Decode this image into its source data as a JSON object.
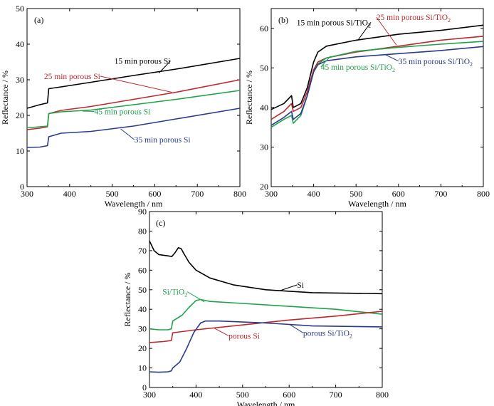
{
  "chart_data": [
    {
      "panel": "(a)",
      "type": "line",
      "xlabel": "Wavelength / nm",
      "ylabel": "Reflectance / %",
      "xlim": [
        300,
        800
      ],
      "ylim": [
        0,
        50
      ],
      "xticks": [
        "300",
        "400",
        "500",
        "600",
        "700",
        "800"
      ],
      "yticks": [
        "0",
        "10",
        "20",
        "30",
        "40",
        "50"
      ],
      "series": [
        {
          "name": "15 min porous Si",
          "sub": "",
          "color": "#000000",
          "x": [
            300,
            330,
            348,
            351,
            380,
            450,
            550,
            650,
            800
          ],
          "y": [
            22,
            23,
            23.5,
            27.5,
            28,
            29.3,
            31.2,
            33,
            36
          ]
        },
        {
          "name": "25 min porous Si",
          "sub": "",
          "color": "#c0282d",
          "x": [
            300,
            330,
            348,
            351,
            380,
            450,
            550,
            650,
            800
          ],
          "y": [
            16,
            16.4,
            16.8,
            20.5,
            21.4,
            22.5,
            24.5,
            26.5,
            30
          ]
        },
        {
          "name": "45 min porous Si",
          "sub": "",
          "color": "#1fa34a",
          "x": [
            300,
            330,
            348,
            351,
            380,
            450,
            550,
            650,
            800
          ],
          "y": [
            16.5,
            16.8,
            17,
            20.5,
            21,
            21.5,
            23,
            24.5,
            27
          ]
        },
        {
          "name": "35 min porous Si",
          "sub": "",
          "color": "#2a3a8c",
          "x": [
            300,
            330,
            348,
            351,
            380,
            450,
            550,
            650,
            800
          ],
          "y": [
            11,
            11.1,
            11.5,
            14,
            15,
            15.5,
            17,
            19,
            22
          ]
        }
      ],
      "labels": [
        {
          "name": "15 min porous Si",
          "sub": "",
          "x": 505,
          "y": 34.5,
          "ax": 610,
          "ay": 31.9
        },
        {
          "name": "25 min porous Si",
          "sub": "",
          "x": 340,
          "y": 30.2,
          "ax": 640,
          "ay": 26.5
        },
        {
          "name": "45 min porous Si",
          "sub": "",
          "x": 458,
          "y": 20.3,
          "ax": 430,
          "ay": 21.2
        },
        {
          "name": "35 min porous Si",
          "sub": "",
          "x": 552,
          "y": 12.4,
          "ax": 520,
          "ay": 16.2
        }
      ]
    },
    {
      "panel": "(b)",
      "type": "line",
      "xlabel": "Wavelength / nm",
      "ylabel": "Reflectance / %",
      "xlim": [
        300,
        800
      ],
      "ylim": [
        20,
        65
      ],
      "xticks": [
        "300",
        "400",
        "500",
        "600",
        "700",
        "800"
      ],
      "yticks": [
        "20",
        "30",
        "40",
        "50",
        "60"
      ],
      "series": [
        {
          "name": "15 min porous Si/TiO",
          "sub": "2",
          "color": "#000000",
          "x": [
            300,
            330,
            348,
            352,
            370,
            385,
            400,
            410,
            430,
            500,
            600,
            700,
            800
          ],
          "y": [
            39.5,
            41,
            43,
            40,
            41,
            45,
            51.5,
            54,
            55.5,
            57,
            58.5,
            59.5,
            60.8
          ]
        },
        {
          "name": "25 min porous Si/TiO",
          "sub": "2",
          "color": "#c0282d",
          "x": [
            300,
            330,
            348,
            352,
            370,
            385,
            400,
            410,
            430,
            500,
            600,
            700,
            800
          ],
          "y": [
            37,
            39,
            41,
            39,
            40,
            44,
            49.5,
            51.5,
            52.5,
            54,
            55.5,
            57,
            58
          ]
        },
        {
          "name": "45 min porous Si/TiO",
          "sub": "2",
          "color": "#1fa34a",
          "x": [
            300,
            330,
            348,
            352,
            370,
            385,
            400,
            410,
            430,
            500,
            600,
            700,
            800
          ],
          "y": [
            35,
            37,
            38,
            36,
            38,
            43,
            49,
            51,
            52.5,
            54.2,
            55.2,
            56,
            56.7
          ]
        },
        {
          "name": "35 min porous Si/TiO",
          "sub": "2",
          "color": "#2a3a8c",
          "x": [
            300,
            330,
            348,
            352,
            370,
            385,
            400,
            410,
            430,
            500,
            600,
            700,
            800
          ],
          "y": [
            35.5,
            37.5,
            39,
            37,
            38.5,
            43,
            49,
            50.8,
            51.8,
            52.8,
            53.6,
            54.4,
            55.4
          ]
        }
      ],
      "labels": [
        {
          "name": "15 min porous Si/TiO",
          "sub": "2",
          "x": 360,
          "y": 60.8,
          "ax": 505,
          "ay": 57.1
        },
        {
          "name": "25 min porous Si/TiO",
          "sub": "2",
          "x": 548,
          "y": 62.1,
          "ax": 595,
          "ay": 55.8
        },
        {
          "name": "45 min porous Si/TiO",
          "sub": "2",
          "x": 417,
          "y": 49.5,
          "ax": 440,
          "ay": 53.0
        },
        {
          "name": "35 min porous Si/TiO",
          "sub": "2",
          "x": 600,
          "y": 51.0,
          "ax": 570,
          "ay": 53.3
        }
      ]
    },
    {
      "panel": "(c)",
      "type": "line",
      "xlabel": "Wavelength / nm",
      "ylabel": "Reflectance / %",
      "xlim": [
        300,
        800
      ],
      "ylim": [
        0,
        90
      ],
      "xticks": [
        "300",
        "400",
        "500",
        "600",
        "700",
        "800"
      ],
      "yticks": [
        "0",
        "10",
        "20",
        "30",
        "40",
        "50",
        "60",
        "70",
        "80",
        "90"
      ],
      "series": [
        {
          "name": "Si",
          "sub": "",
          "color": "#000000",
          "x": [
            300,
            310,
            320,
            335,
            348,
            355,
            362,
            368,
            375,
            385,
            400,
            430,
            480,
            550,
            650,
            800
          ],
          "y": [
            75,
            70,
            68,
            67.5,
            67,
            69,
            71.5,
            71,
            68,
            64,
            60,
            56,
            52.5,
            50,
            48.5,
            48
          ]
        },
        {
          "name": "Si/TiO",
          "sub": "2",
          "color": "#1fa34a",
          "x": [
            300,
            320,
            340,
            347,
            350,
            370,
            385,
            400,
            410,
            430,
            500,
            600,
            700,
            800
          ],
          "y": [
            30,
            29.5,
            29.5,
            30,
            34,
            37,
            41,
            44.5,
            45,
            44,
            43,
            41.5,
            40,
            37.5
          ]
        },
        {
          "name": "porous Si",
          "sub": "",
          "color": "#c0282d",
          "x": [
            300,
            330,
            347,
            350,
            400,
            500,
            600,
            700,
            800
          ],
          "y": [
            23,
            23.5,
            24,
            28,
            29.5,
            32,
            34.5,
            36.5,
            39
          ]
        },
        {
          "name": "porous Si/TiO",
          "sub": "2",
          "color": "#2a3a8c",
          "x": [
            300,
            320,
            340,
            347,
            350,
            365,
            380,
            395,
            410,
            420,
            450,
            550,
            650,
            800
          ],
          "y": [
            8,
            7.8,
            8,
            8.5,
            10,
            13,
            20,
            28,
            33,
            34,
            34,
            33,
            31.5,
            31
          ]
        }
      ],
      "labels": [
        {
          "name": "Si",
          "sub": "",
          "x": 617,
          "y": 51.0,
          "ax": 580,
          "ay": 49.5
        },
        {
          "name": "Si/TiO",
          "sub": "2",
          "x": 328,
          "y": 47.5,
          "ax": 418,
          "ay": 43.8
        },
        {
          "name": "porous Si",
          "sub": "",
          "x": 470,
          "y": 25.0,
          "ax": 440,
          "ay": 30.2
        },
        {
          "name": "porous Si/TiO",
          "sub": "2",
          "x": 630,
          "y": 26.5,
          "ax": 600,
          "ay": 32.4
        }
      ]
    }
  ]
}
